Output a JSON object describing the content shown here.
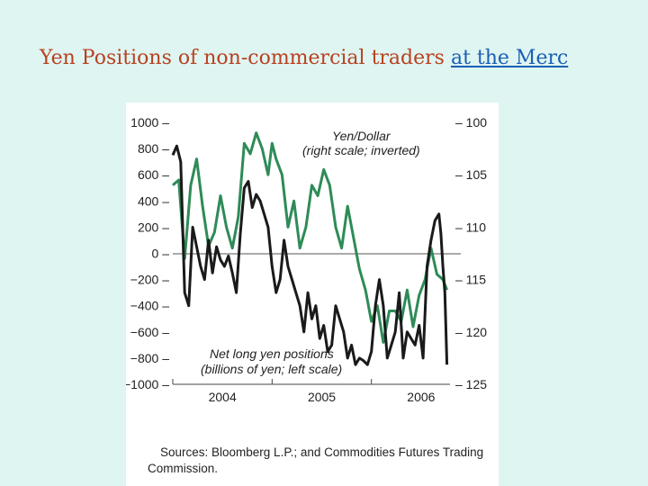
{
  "slide": {
    "title_text": "Yen Positions of non-commercial traders ",
    "title_link": "at the Merc"
  },
  "colors": {
    "background": "#dff5f2",
    "title": "#b8411f",
    "link": "#1a5fb4",
    "yen_dollar_line": "#2e8b57",
    "net_long_line": "#1a1a1a"
  },
  "chart_data": {
    "type": "line",
    "left_axis": {
      "range": [
        -1000,
        1000
      ],
      "ticks": [
        "1000",
        "800",
        "600",
        "400",
        "200",
        "0",
        "−200",
        "−400",
        "−600",
        "−800",
        "−1000"
      ]
    },
    "right_axis": {
      "range": [
        100,
        125
      ],
      "inverted": true,
      "ticks": [
        "100",
        "105",
        "110",
        "115",
        "120",
        "125"
      ]
    },
    "x_axis": {
      "range": [
        2003.5,
        2006.4
      ],
      "ticks": [
        2004,
        2005,
        2006
      ],
      "tick_labels": [
        "2004",
        "2005",
        "2006"
      ]
    },
    "annotations": {
      "yen_dollar_1": "Yen/Dollar",
      "yen_dollar_2": "(right scale; inverted)",
      "net_long_1": "Net long yen positions",
      "net_long_2": "(billions of yen; left scale)"
    },
    "source_1": "Sources: Bloomberg L.P.; and Commodities Futures Trading",
    "source_2": "Commission.",
    "series": [
      {
        "key": "yen_dollar",
        "axis": "right",
        "x": [
          2003.5,
          2003.56,
          2003.62,
          2003.68,
          2003.74,
          2003.8,
          2003.86,
          2003.92,
          2003.98,
          2004.04,
          2004.1,
          2004.16,
          2004.22,
          2004.28,
          2004.34,
          2004.4,
          2004.46,
          2004.5,
          2004.54,
          2004.6,
          2004.66,
          2004.72,
          2004.78,
          2004.84,
          2004.9,
          2004.96,
          2005.02,
          2005.08,
          2005.14,
          2005.2,
          2005.26,
          2005.32,
          2005.38,
          2005.44,
          2005.5,
          2005.56,
          2005.62,
          2005.68,
          2005.74,
          2005.8,
          2005.86,
          2005.92,
          2005.98,
          2006.04,
          2006.1,
          2006.16,
          2006.22,
          2006.26
        ],
        "values": [
          106,
          105.5,
          113,
          106,
          103.5,
          108,
          111.8,
          110.5,
          107,
          110,
          112,
          109,
          102,
          103,
          101,
          102.5,
          105,
          102,
          103.5,
          105,
          110,
          107.5,
          112,
          110,
          106,
          107,
          104.5,
          106,
          110,
          112,
          108,
          111,
          114,
          116,
          119,
          117.5,
          121,
          118,
          118,
          119,
          116,
          119.5,
          116.5,
          115,
          112,
          114.5,
          115,
          116
        ]
      },
      {
        "key": "net_long",
        "axis": "left",
        "x": [
          2003.5,
          2003.54,
          2003.58,
          2003.62,
          2003.66,
          2003.7,
          2003.74,
          2003.78,
          2003.82,
          2003.86,
          2003.9,
          2003.94,
          2003.98,
          2004.02,
          2004.06,
          2004.1,
          2004.14,
          2004.18,
          2004.22,
          2004.26,
          2004.3,
          2004.34,
          2004.38,
          2004.42,
          2004.46,
          2004.5,
          2004.54,
          2004.58,
          2004.62,
          2004.66,
          2004.7,
          2004.74,
          2004.78,
          2004.82,
          2004.86,
          2004.9,
          2004.94,
          2004.98,
          2005.02,
          2005.06,
          2005.1,
          2005.14,
          2005.18,
          2005.22,
          2005.26,
          2005.3,
          2005.34,
          2005.38,
          2005.42,
          2005.46,
          2005.5,
          2005.54,
          2005.58,
          2005.62,
          2005.66,
          2005.7,
          2005.74,
          2005.78,
          2005.82,
          2005.86,
          2005.9,
          2005.94,
          2005.98,
          2006.02,
          2006.06,
          2006.1,
          2006.14,
          2006.18,
          2006.2,
          2006.22,
          2006.24,
          2006.26
        ],
        "values": [
          750,
          820,
          700,
          -300,
          -400,
          200,
          50,
          -100,
          -200,
          100,
          -150,
          50,
          -50,
          -100,
          -20,
          -150,
          -300,
          150,
          500,
          550,
          350,
          450,
          400,
          300,
          200,
          -100,
          -300,
          -200,
          100,
          -100,
          -200,
          -300,
          -400,
          -600,
          -300,
          -500,
          -400,
          -650,
          -550,
          -750,
          -700,
          -400,
          -500,
          -600,
          -800,
          -700,
          -850,
          -800,
          -820,
          -850,
          -750,
          -400,
          -200,
          -400,
          -800,
          -700,
          -600,
          -300,
          -800,
          -600,
          -650,
          -700,
          -550,
          -800,
          -100,
          100,
          250,
          300,
          150,
          -100,
          -300,
          -850
        ]
      }
    ]
  }
}
